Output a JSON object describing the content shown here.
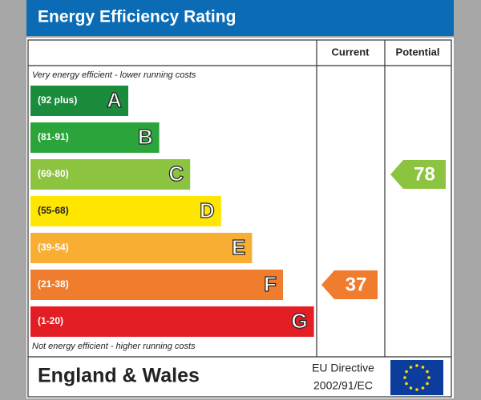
{
  "title": "Energy Efficiency Rating",
  "columns": [
    "Current",
    "Potential"
  ],
  "top_note": "Very energy efficient - lower running costs",
  "bottom_note": "Not energy efficient - higher running costs",
  "bands": [
    {
      "range": "(92 plus)",
      "letter": "A",
      "color": "#1a8c3c"
    },
    {
      "range": "(81-91)",
      "letter": "B",
      "color": "#2aa43b"
    },
    {
      "range": "(69-80)",
      "letter": "C",
      "color": "#8cc43f"
    },
    {
      "range": "(55-68)",
      "letter": "D",
      "color": "#ffe600"
    },
    {
      "range": "(39-54)",
      "letter": "E",
      "color": "#f7ae33"
    },
    {
      "range": "(21-38)",
      "letter": "F",
      "color": "#ef7d2d"
    },
    {
      "range": "(1-20)",
      "letter": "G",
      "color": "#e31d24"
    }
  ],
  "current": 37,
  "potential": 78,
  "footer": {
    "region": "England & Wales",
    "directive": [
      "EU Directive",
      "2002/91/EC"
    ]
  }
}
